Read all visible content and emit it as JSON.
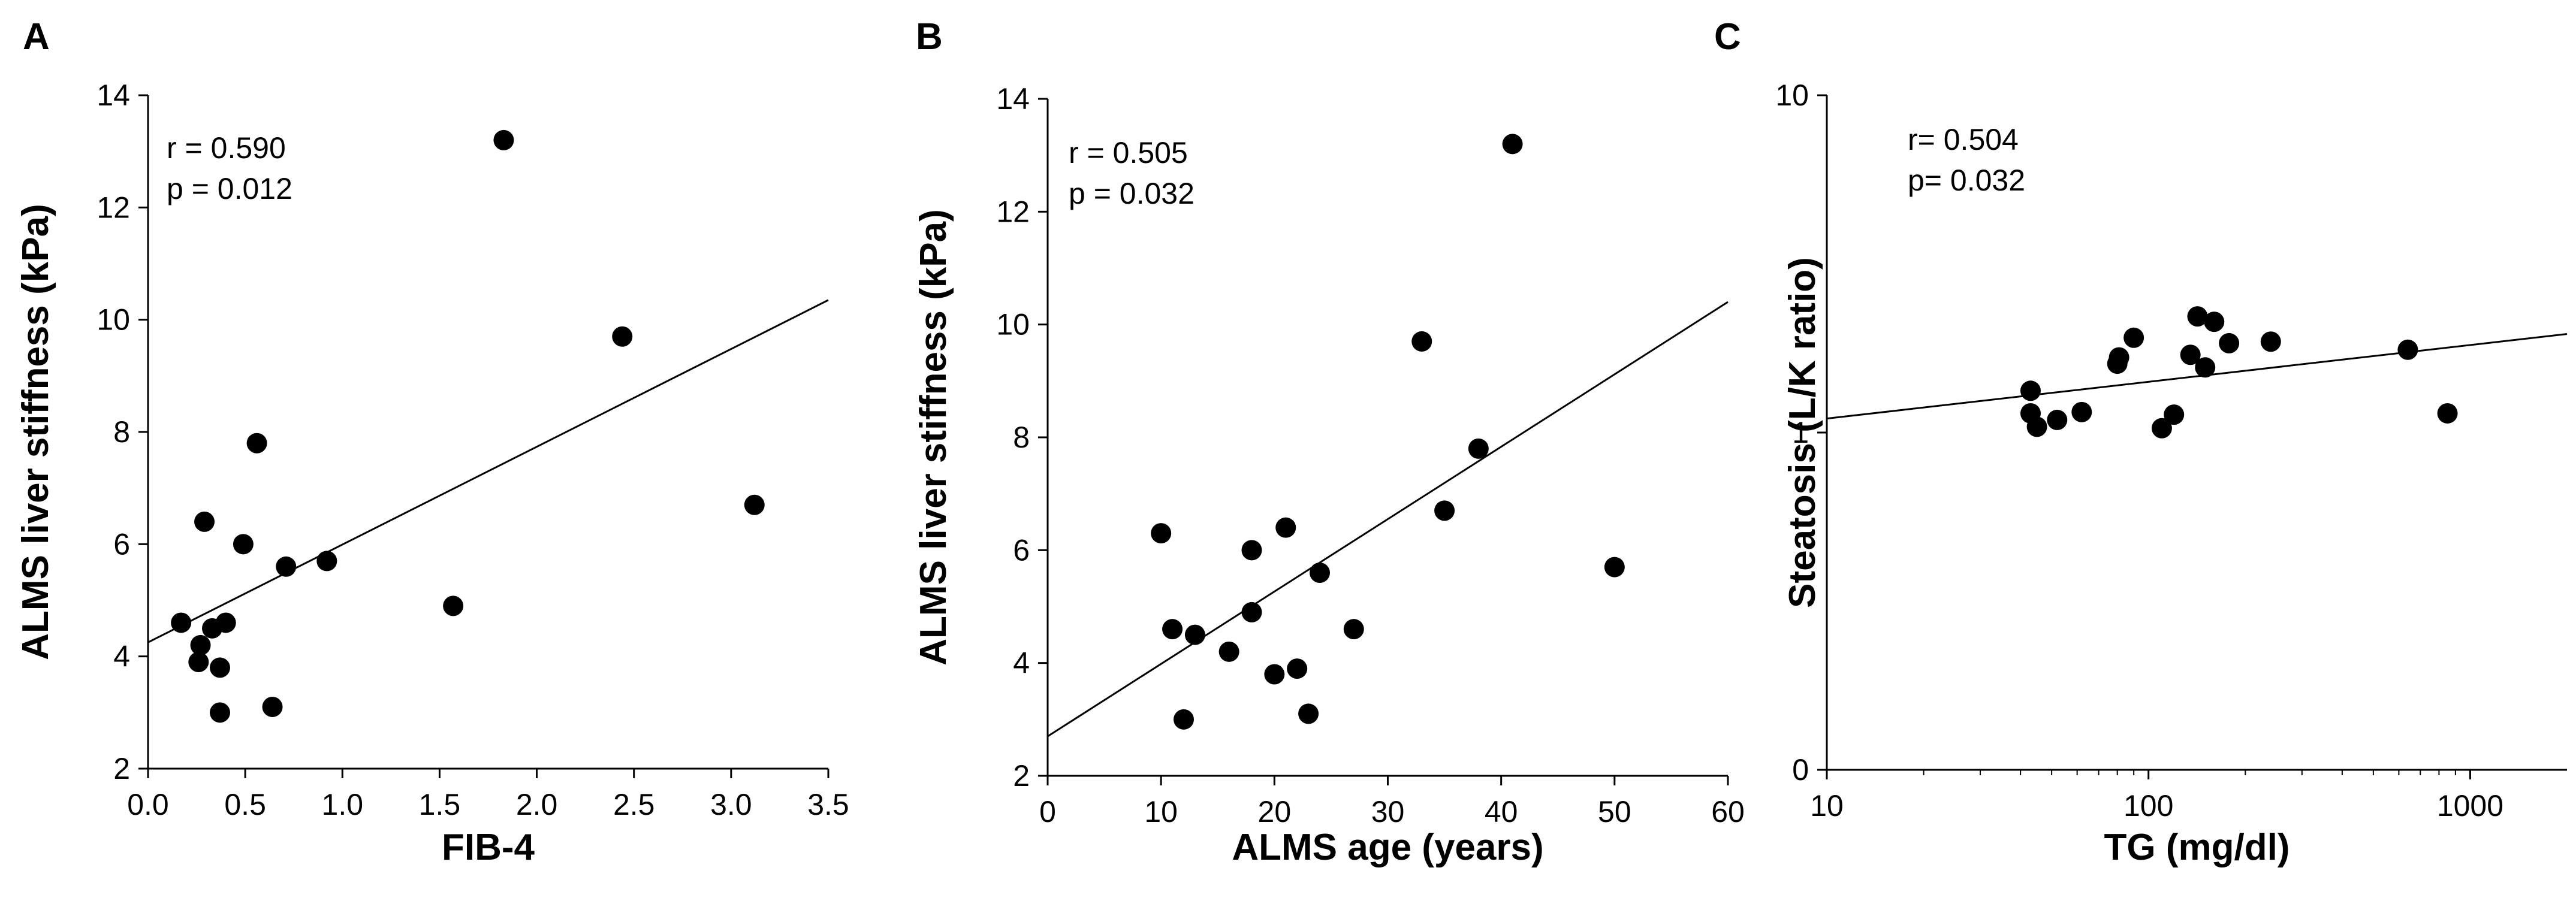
{
  "chart_data": [
    {
      "type": "scatter",
      "panel": "A",
      "xlabel": "FIB-4",
      "ylabel": "ALMS liver stiffness (kPa)",
      "xscale": "linear",
      "yscale": "linear",
      "xlim": [
        0,
        3.5
      ],
      "ylim": [
        2,
        14
      ],
      "xticks": [
        0,
        0.5,
        1,
        1.5,
        2,
        2.5,
        3,
        3.5
      ],
      "xtick_labels": [
        "0.0",
        "0.5",
        "1.0",
        "1.5",
        "2.0",
        "2.5",
        "3.0",
        "3.5"
      ],
      "yticks": [
        2,
        4,
        6,
        8,
        10,
        12,
        14
      ],
      "ytick_labels": [
        "2",
        "4",
        "6",
        "8",
        "10",
        "12",
        "14"
      ],
      "annotation": [
        "r = 0.590",
        "p = 0.012"
      ],
      "points": [
        {
          "x": 0.17,
          "y": 4.6
        },
        {
          "x": 0.26,
          "y": 3.9
        },
        {
          "x": 0.27,
          "y": 4.2
        },
        {
          "x": 0.29,
          "y": 6.4
        },
        {
          "x": 0.33,
          "y": 4.5
        },
        {
          "x": 0.37,
          "y": 3.8
        },
        {
          "x": 0.37,
          "y": 3.0
        },
        {
          "x": 0.4,
          "y": 4.6
        },
        {
          "x": 0.49,
          "y": 6.0
        },
        {
          "x": 0.56,
          "y": 7.8
        },
        {
          "x": 0.64,
          "y": 3.1
        },
        {
          "x": 0.71,
          "y": 5.6
        },
        {
          "x": 0.92,
          "y": 5.7
        },
        {
          "x": 1.57,
          "y": 4.9
        },
        {
          "x": 1.83,
          "y": 13.2
        },
        {
          "x": 2.44,
          "y": 9.7
        },
        {
          "x": 3.12,
          "y": 6.7
        }
      ],
      "fit_line": {
        "x": [
          0,
          3.5
        ],
        "y": [
          4.25,
          10.35
        ]
      }
    },
    {
      "type": "scatter",
      "panel": "B",
      "xlabel": "ALMS age (years)",
      "ylabel": "ALMS liver stiffness (kPa)",
      "xscale": "linear",
      "yscale": "linear",
      "xlim": [
        0,
        60
      ],
      "ylim": [
        2,
        14
      ],
      "xticks": [
        0,
        10,
        20,
        30,
        40,
        50,
        60
      ],
      "xtick_labels": [
        "0",
        "10",
        "20",
        "30",
        "40",
        "50",
        "60"
      ],
      "yticks": [
        2,
        4,
        6,
        8,
        10,
        12,
        14
      ],
      "ytick_labels": [
        "2",
        "4",
        "6",
        "8",
        "10",
        "12",
        "14"
      ],
      "annotation": [
        "r = 0.505",
        "p = 0.032"
      ],
      "points": [
        {
          "x": 10,
          "y": 6.3
        },
        {
          "x": 11,
          "y": 4.6
        },
        {
          "x": 12,
          "y": 3.0
        },
        {
          "x": 13,
          "y": 4.5
        },
        {
          "x": 16,
          "y": 4.2
        },
        {
          "x": 18,
          "y": 6.0
        },
        {
          "x": 18,
          "y": 4.9
        },
        {
          "x": 20,
          "y": 3.8
        },
        {
          "x": 21,
          "y": 6.4
        },
        {
          "x": 22,
          "y": 3.9
        },
        {
          "x": 23,
          "y": 3.1
        },
        {
          "x": 24,
          "y": 5.6
        },
        {
          "x": 27,
          "y": 4.6
        },
        {
          "x": 33,
          "y": 9.7
        },
        {
          "x": 35,
          "y": 6.7
        },
        {
          "x": 38,
          "y": 7.8
        },
        {
          "x": 41,
          "y": 13.2
        },
        {
          "x": 50,
          "y": 5.7
        }
      ],
      "fit_line": {
        "x": [
          0,
          60
        ],
        "y": [
          2.7,
          10.4
        ]
      }
    },
    {
      "type": "scatter",
      "panel": "C",
      "xlabel": "TG (mg/dl)",
      "ylabel": "Steatosis (L/K ratio)",
      "xscale": "log",
      "yscale": "log",
      "xlim": [
        10,
        2000
      ],
      "ylim": [
        0.1,
        10
      ],
      "xticks": [
        10,
        100,
        1000
      ],
      "xtick_labels": [
        "10",
        "100",
        "1000"
      ],
      "yticks": [
        0.1,
        1,
        10
      ],
      "ytick_labels": [
        "0",
        "1",
        "10"
      ],
      "annotation": [
        "r= 0.504",
        "p= 0.032"
      ],
      "points": [
        {
          "x": 43,
          "y": 1.33
        },
        {
          "x": 43,
          "y": 1.14
        },
        {
          "x": 45,
          "y": 1.04
        },
        {
          "x": 52,
          "y": 1.09
        },
        {
          "x": 62,
          "y": 1.15
        },
        {
          "x": 80,
          "y": 1.6
        },
        {
          "x": 81,
          "y": 1.67
        },
        {
          "x": 90,
          "y": 1.91
        },
        {
          "x": 110,
          "y": 1.03
        },
        {
          "x": 120,
          "y": 1.13
        },
        {
          "x": 135,
          "y": 1.7
        },
        {
          "x": 142,
          "y": 2.21
        },
        {
          "x": 150,
          "y": 1.56
        },
        {
          "x": 160,
          "y": 2.13
        },
        {
          "x": 178,
          "y": 1.84
        },
        {
          "x": 240,
          "y": 1.86
        },
        {
          "x": 640,
          "y": 1.76
        },
        {
          "x": 850,
          "y": 1.14
        }
      ],
      "fit_line": {
        "x": [
          10,
          2000
        ],
        "y": [
          1.1,
          1.96
        ]
      }
    }
  ]
}
